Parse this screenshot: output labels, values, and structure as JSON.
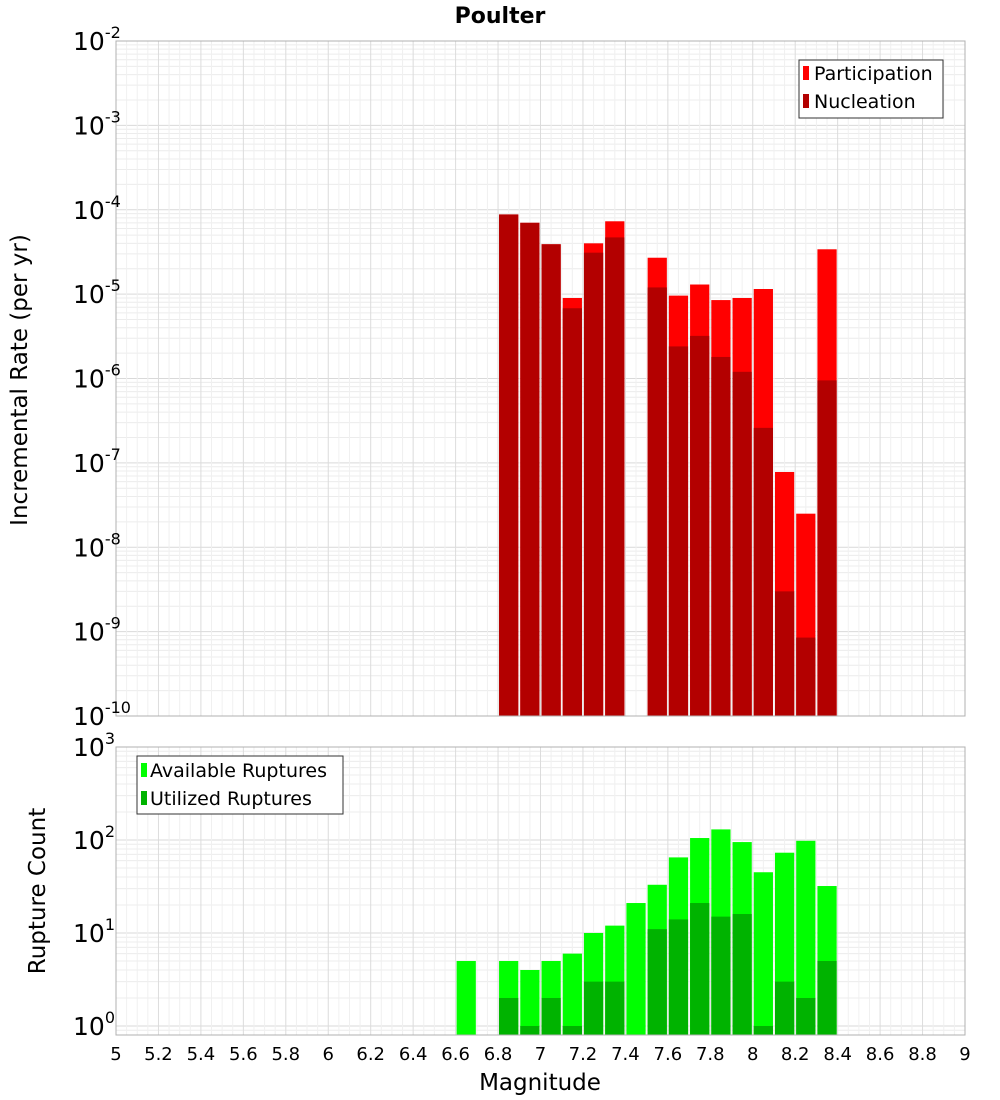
{
  "chart_data": [
    {
      "type": "bar",
      "title": "Poulter",
      "xlabel": "",
      "ylabel": "Incremental Rate (per yr)",
      "xlim": [
        5,
        9
      ],
      "ylim": [
        1e-10,
        0.01
      ],
      "yscale": "log",
      "grid": true,
      "legend_position": "top-right",
      "bar_width": 0.1,
      "ytick_exponents": [
        "-2",
        "-3",
        "-4",
        "-5",
        "-6",
        "-7",
        "-8",
        "-9",
        "-10"
      ],
      "series": [
        {
          "name": "Participation",
          "color": "#ff0000",
          "points": [
            {
              "x": 6.85,
              "y": 8.8e-05
            },
            {
              "x": 6.95,
              "y": 7e-05
            },
            {
              "x": 7.05,
              "y": 3.9e-05
            },
            {
              "x": 7.15,
              "y": 9e-06
            },
            {
              "x": 7.25,
              "y": 4e-05
            },
            {
              "x": 7.35,
              "y": 7.3e-05
            },
            {
              "x": 7.55,
              "y": 2.7e-05
            },
            {
              "x": 7.65,
              "y": 9.6e-06
            },
            {
              "x": 7.75,
              "y": 1.3e-05
            },
            {
              "x": 7.85,
              "y": 8.5e-06
            },
            {
              "x": 7.95,
              "y": 9e-06
            },
            {
              "x": 8.05,
              "y": 1.15e-05
            },
            {
              "x": 8.15,
              "y": 7.8e-08
            },
            {
              "x": 8.25,
              "y": 2.5e-08
            },
            {
              "x": 8.35,
              "y": 3.4e-05
            }
          ]
        },
        {
          "name": "Nucleation",
          "color": "#b30000",
          "points": [
            {
              "x": 6.85,
              "y": 8.8e-05
            },
            {
              "x": 6.95,
              "y": 7e-05
            },
            {
              "x": 7.05,
              "y": 3.9e-05
            },
            {
              "x": 7.15,
              "y": 6.8e-06
            },
            {
              "x": 7.25,
              "y": 3.1e-05
            },
            {
              "x": 7.35,
              "y": 4.7e-05
            },
            {
              "x": 7.55,
              "y": 1.2e-05
            },
            {
              "x": 7.65,
              "y": 2.4e-06
            },
            {
              "x": 7.75,
              "y": 3.2e-06
            },
            {
              "x": 7.85,
              "y": 1.8e-06
            },
            {
              "x": 7.95,
              "y": 1.2e-06
            },
            {
              "x": 8.05,
              "y": 2.6e-07
            },
            {
              "x": 8.15,
              "y": 3e-09
            },
            {
              "x": 8.25,
              "y": 8.5e-10
            },
            {
              "x": 8.35,
              "y": 9.5e-07
            }
          ]
        }
      ]
    },
    {
      "type": "bar",
      "title": "",
      "xlabel": "Magnitude",
      "ylabel": "Rupture Count",
      "xlim": [
        5,
        9
      ],
      "ylim": [
        0.8,
        1000
      ],
      "yscale": "log",
      "grid": true,
      "legend_position": "top-left",
      "bar_width": 0.1,
      "ytick_exponents": [
        "3",
        "2",
        "1",
        "0"
      ],
      "xticks": [
        "5",
        "5.2",
        "5.4",
        "5.6",
        "5.8",
        "6",
        "6.2",
        "6.4",
        "6.6",
        "6.8",
        "7",
        "7.2",
        "7.4",
        "7.6",
        "7.8",
        "8",
        "8.2",
        "8.4",
        "8.6",
        "8.8",
        "9"
      ],
      "series": [
        {
          "name": "Available Ruptures",
          "color": "#00ff00",
          "points": [
            {
              "x": 6.65,
              "y": 5
            },
            {
              "x": 6.85,
              "y": 5
            },
            {
              "x": 6.95,
              "y": 4
            },
            {
              "x": 7.05,
              "y": 5
            },
            {
              "x": 7.15,
              "y": 6
            },
            {
              "x": 7.25,
              "y": 10
            },
            {
              "x": 7.35,
              "y": 12
            },
            {
              "x": 7.45,
              "y": 21
            },
            {
              "x": 7.55,
              "y": 33
            },
            {
              "x": 7.65,
              "y": 65
            },
            {
              "x": 7.75,
              "y": 105
            },
            {
              "x": 7.85,
              "y": 130
            },
            {
              "x": 7.95,
              "y": 95
            },
            {
              "x": 8.05,
              "y": 45
            },
            {
              "x": 8.15,
              "y": 73
            },
            {
              "x": 8.25,
              "y": 98
            },
            {
              "x": 8.35,
              "y": 32
            }
          ]
        },
        {
          "name": "Utilized Ruptures",
          "color": "#00b300",
          "points": [
            {
              "x": 6.85,
              "y": 2
            },
            {
              "x": 6.95,
              "y": 1
            },
            {
              "x": 7.05,
              "y": 2
            },
            {
              "x": 7.15,
              "y": 1
            },
            {
              "x": 7.25,
              "y": 3
            },
            {
              "x": 7.35,
              "y": 3
            },
            {
              "x": 7.55,
              "y": 11
            },
            {
              "x": 7.65,
              "y": 14
            },
            {
              "x": 7.75,
              "y": 21
            },
            {
              "x": 7.85,
              "y": 15
            },
            {
              "x": 7.95,
              "y": 16
            },
            {
              "x": 8.05,
              "y": 1
            },
            {
              "x": 8.15,
              "y": 3
            },
            {
              "x": 8.25,
              "y": 2
            },
            {
              "x": 8.35,
              "y": 5
            }
          ]
        }
      ]
    }
  ]
}
